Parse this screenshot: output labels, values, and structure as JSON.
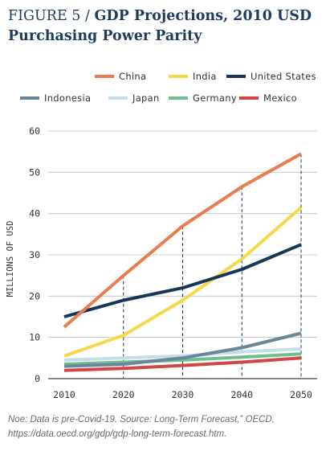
{
  "figure_label": "FIGURE 5 / ",
  "title_line1": "GDP Projections, 2010 USD",
  "title_line2": "Purchasing Power Parity",
  "note": "Noe: Data is pre-Covid-19. Source: Long-Term Forecast,” OECD, https://data.oecd.org/gdp/gdp-long-term-forecast.htm.",
  "chart_data": {
    "type": "line",
    "title": "GDP Projections, 2010 USD Purchasing Power Parity",
    "xlabel": "",
    "ylabel": "MILLIONS OF USD",
    "x": [
      2010,
      2020,
      2030,
      2040,
      2050
    ],
    "ylim": [
      0,
      60
    ],
    "yticks": [
      0,
      10,
      20,
      30,
      40,
      50,
      60
    ],
    "grid": "horizontal",
    "legend_position": "top",
    "series": [
      {
        "name": "China",
        "color": "#e97d4f",
        "values": [
          12.5,
          25,
          37,
          46.5,
          54.5
        ]
      },
      {
        "name": "India",
        "color": "#f7d84a",
        "values": [
          5.5,
          10.5,
          19,
          29,
          41.5
        ]
      },
      {
        "name": "United States",
        "color": "#17375a",
        "values": [
          15,
          19,
          22,
          26.5,
          32.5
        ]
      },
      {
        "name": "Indonesia",
        "color": "#6a8799",
        "values": [
          3,
          3.5,
          5,
          7.5,
          11
        ]
      },
      {
        "name": "Japan",
        "color": "#c5dde8",
        "values": [
          4.5,
          5,
          5.5,
          6.5,
          7.2
        ]
      },
      {
        "name": "Germany",
        "color": "#6dbf8d",
        "values": [
          3.5,
          4,
          4.5,
          5.2,
          6
        ]
      },
      {
        "name": "Mexico",
        "color": "#d14646",
        "values": [
          2,
          2.5,
          3.2,
          4,
          5
        ]
      }
    ]
  }
}
